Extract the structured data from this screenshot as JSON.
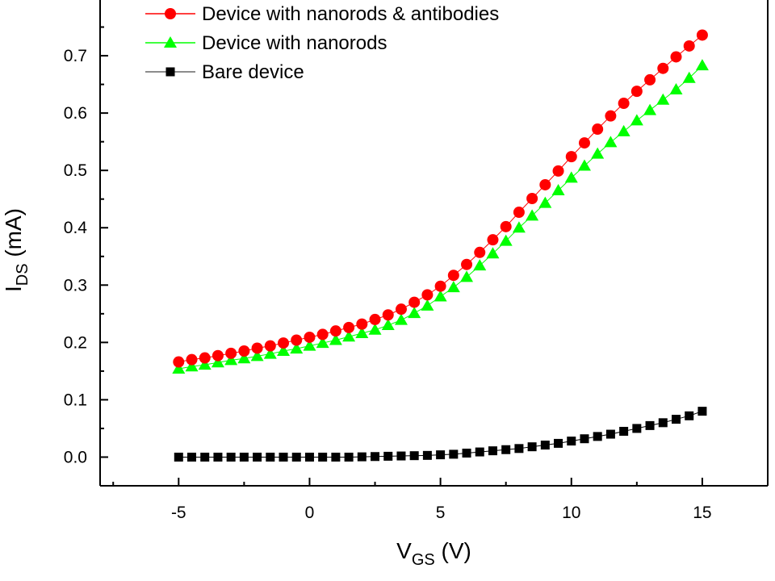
{
  "chart_data": {
    "type": "scatter",
    "xlabel": {
      "main": "V",
      "sub": "GS",
      "unit": " (V)"
    },
    "ylabel": {
      "main": "I",
      "sub": "DS",
      "unit": " (mA)"
    },
    "xlim": [
      -8,
      17.5
    ],
    "ylim": [
      -0.05,
      0.8
    ],
    "x_ticks": [
      -5,
      0,
      5,
      10,
      15
    ],
    "y_ticks": [
      0.0,
      0.1,
      0.2,
      0.3,
      0.4,
      0.5,
      0.6,
      0.7
    ],
    "y_tick_labels": [
      "0.0",
      "0.1",
      "0.2",
      "0.3",
      "0.4",
      "0.5",
      "0.6",
      "0.7"
    ],
    "x_tick_labels": [
      "-5",
      "0",
      "5",
      "10",
      "15"
    ],
    "grid": false,
    "legend_position": "top-left",
    "series": [
      {
        "name": "Device with nanorods & antibodies",
        "color": "#ff0000",
        "marker": "circle",
        "x": [
          -5,
          -4.5,
          -4,
          -3.5,
          -3,
          -2.5,
          -2,
          -1.5,
          -1,
          -0.5,
          0,
          0.5,
          1,
          1.5,
          2,
          2.5,
          3,
          3.5,
          4,
          4.5,
          5,
          5.5,
          6,
          6.5,
          7,
          7.5,
          8,
          8.5,
          9,
          9.5,
          10,
          10.5,
          11,
          11.5,
          12,
          12.5,
          13,
          13.5,
          14,
          14.5,
          15
        ],
        "y": [
          0.166,
          0.17,
          0.173,
          0.177,
          0.181,
          0.185,
          0.19,
          0.194,
          0.199,
          0.204,
          0.209,
          0.214,
          0.22,
          0.226,
          0.232,
          0.24,
          0.248,
          0.258,
          0.27,
          0.283,
          0.298,
          0.317,
          0.336,
          0.357,
          0.379,
          0.402,
          0.427,
          0.451,
          0.475,
          0.499,
          0.524,
          0.548,
          0.572,
          0.595,
          0.617,
          0.638,
          0.658,
          0.678,
          0.698,
          0.717,
          0.736
        ]
      },
      {
        "name": "Device with nanorods",
        "color": "#00ff00",
        "marker": "triangle",
        "x": [
          -5,
          -4.5,
          -4,
          -3.5,
          -3,
          -2.5,
          -2,
          -1.5,
          -1,
          -0.5,
          0,
          0.5,
          1,
          1.5,
          2,
          2.5,
          3,
          3.5,
          4,
          4.5,
          5,
          5.5,
          6,
          6.5,
          7,
          7.5,
          8,
          8.5,
          9,
          9.5,
          10,
          10.5,
          11,
          11.5,
          12,
          12.5,
          13,
          13.5,
          14,
          14.5,
          15
        ],
        "y": [
          0.154,
          0.158,
          0.161,
          0.165,
          0.169,
          0.172,
          0.176,
          0.18,
          0.185,
          0.189,
          0.194,
          0.199,
          0.204,
          0.21,
          0.216,
          0.222,
          0.23,
          0.239,
          0.251,
          0.264,
          0.28,
          0.296,
          0.314,
          0.334,
          0.355,
          0.377,
          0.4,
          0.421,
          0.443,
          0.465,
          0.487,
          0.508,
          0.529,
          0.549,
          0.568,
          0.587,
          0.605,
          0.623,
          0.641,
          0.661,
          0.683
        ]
      },
      {
        "name": "Bare device",
        "color": "#000000",
        "marker": "square",
        "x": [
          -5,
          -4.5,
          -4,
          -3.5,
          -3,
          -2.5,
          -2,
          -1.5,
          -1,
          -0.5,
          0,
          0.5,
          1,
          1.5,
          2,
          2.5,
          3,
          3.5,
          4,
          4.5,
          5,
          5.5,
          6,
          6.5,
          7,
          7.5,
          8,
          8.5,
          9,
          9.5,
          10,
          10.5,
          11,
          11.5,
          12,
          12.5,
          13,
          13.5,
          14,
          14.5,
          15
        ],
        "y": [
          0.0,
          0.0,
          0.0,
          0.0,
          0.0,
          0.0,
          0.0,
          0.0,
          0.0,
          0.0,
          0.0,
          0.0,
          0.0,
          0.0,
          0.0005,
          0.001,
          0.0015,
          0.002,
          0.0025,
          0.003,
          0.004,
          0.005,
          0.007,
          0.009,
          0.011,
          0.013,
          0.015,
          0.018,
          0.021,
          0.024,
          0.028,
          0.032,
          0.036,
          0.04,
          0.045,
          0.05,
          0.055,
          0.06,
          0.066,
          0.072,
          0.08
        ]
      }
    ]
  }
}
